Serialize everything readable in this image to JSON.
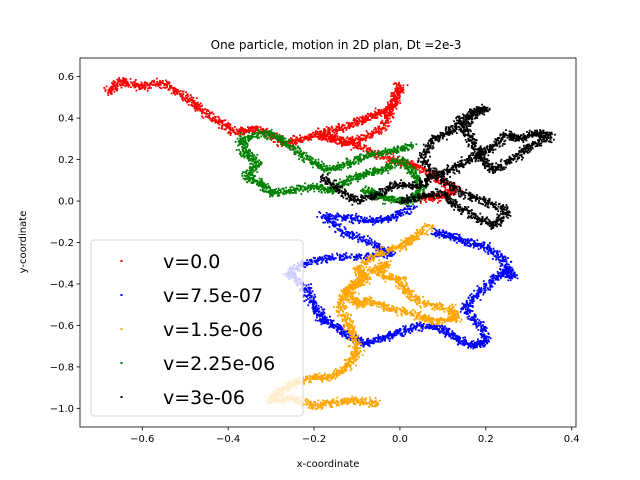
{
  "chart_data": {
    "type": "scatter",
    "title": "One particle, motion in 2D plan, Dt =2e-3",
    "xlabel": "x-coordinate",
    "ylabel": "y-coordinate",
    "xlim": [
      -0.745,
      0.41
    ],
    "ylim": [
      -1.09,
      0.69
    ],
    "xticks": [
      -0.6,
      -0.4,
      -0.2,
      0.0,
      0.2,
      0.4
    ],
    "xtick_labels": [
      "−0.6",
      "−0.4",
      "−0.2",
      "0.0",
      "0.2",
      "0.4"
    ],
    "yticks": [
      -1.0,
      -0.8,
      -0.6,
      -0.4,
      -0.2,
      0.0,
      0.2,
      0.4,
      0.6
    ],
    "ytick_labels": [
      "−1.0",
      "−0.8",
      "−0.6",
      "−0.4",
      "−0.2",
      "0.0",
      "0.2",
      "0.4",
      "0.6"
    ],
    "grid": false,
    "legend_position": "lower-left",
    "series": [
      {
        "name": "v=0.0",
        "color": "#ff0000",
        "path": [
          [
            -0.68,
            0.52
          ],
          [
            -0.65,
            0.58
          ],
          [
            -0.6,
            0.55
          ],
          [
            -0.55,
            0.57
          ],
          [
            -0.5,
            0.5
          ],
          [
            -0.47,
            0.45
          ],
          [
            -0.42,
            0.38
          ],
          [
            -0.38,
            0.33
          ],
          [
            -0.34,
            0.35
          ],
          [
            -0.3,
            0.32
          ],
          [
            -0.27,
            0.28
          ],
          [
            -0.22,
            0.3
          ],
          [
            -0.17,
            0.34
          ],
          [
            -0.12,
            0.36
          ],
          [
            -0.08,
            0.4
          ],
          [
            -0.04,
            0.43
          ],
          [
            -0.01,
            0.48
          ],
          [
            0.0,
            0.56
          ],
          [
            -0.02,
            0.45
          ],
          [
            -0.04,
            0.35
          ],
          [
            -0.09,
            0.3
          ],
          [
            -0.14,
            0.28
          ],
          [
            -0.19,
            0.32
          ],
          [
            -0.14,
            0.3
          ],
          [
            -0.08,
            0.25
          ],
          [
            -0.02,
            0.2
          ],
          [
            0.04,
            0.17
          ],
          [
            0.09,
            0.1
          ],
          [
            0.13,
            0.06
          ],
          [
            0.1,
            0.02
          ],
          [
            0.05,
            0.01
          ]
        ]
      },
      {
        "name": "v=7.5e-07",
        "color": "#0000ff",
        "path": [
          [
            0.03,
            -0.03
          ],
          [
            -0.02,
            -0.08
          ],
          [
            -0.07,
            -0.1
          ],
          [
            -0.12,
            -0.08
          ],
          [
            -0.18,
            -0.07
          ],
          [
            -0.13,
            -0.15
          ],
          [
            -0.07,
            -0.2
          ],
          [
            -0.02,
            -0.25
          ],
          [
            -0.08,
            -0.27
          ],
          [
            -0.16,
            -0.27
          ],
          [
            -0.22,
            -0.3
          ],
          [
            -0.26,
            -0.35
          ],
          [
            -0.22,
            -0.42
          ],
          [
            -0.2,
            -0.5
          ],
          [
            -0.18,
            -0.57
          ],
          [
            -0.15,
            -0.6
          ],
          [
            -0.12,
            -0.65
          ],
          [
            -0.08,
            -0.69
          ],
          [
            -0.04,
            -0.66
          ],
          [
            0.0,
            -0.63
          ],
          [
            0.05,
            -0.6
          ],
          [
            0.1,
            -0.62
          ],
          [
            0.13,
            -0.66
          ],
          [
            0.17,
            -0.7
          ],
          [
            0.2,
            -0.68
          ],
          [
            0.19,
            -0.6
          ],
          [
            0.15,
            -0.52
          ],
          [
            0.18,
            -0.45
          ],
          [
            0.22,
            -0.38
          ],
          [
            0.25,
            -0.33
          ],
          [
            0.26,
            -0.37
          ],
          [
            0.24,
            -0.28
          ],
          [
            0.2,
            -0.22
          ],
          [
            0.16,
            -0.2
          ],
          [
            0.12,
            -0.17
          ],
          [
            0.08,
            -0.15
          ]
        ]
      },
      {
        "name": "v=1.5e-06",
        "color": "#ffa500",
        "path": [
          [
            0.07,
            -0.12
          ],
          [
            0.03,
            -0.18
          ],
          [
            0.0,
            -0.22
          ],
          [
            -0.05,
            -0.25
          ],
          [
            -0.1,
            -0.33
          ],
          [
            -0.08,
            -0.38
          ],
          [
            -0.12,
            -0.43
          ],
          [
            -0.1,
            -0.5
          ],
          [
            -0.07,
            -0.48
          ],
          [
            -0.02,
            -0.52
          ],
          [
            0.04,
            -0.55
          ],
          [
            0.08,
            -0.58
          ],
          [
            0.13,
            -0.57
          ],
          [
            0.12,
            -0.52
          ],
          [
            0.06,
            -0.5
          ],
          [
            0.02,
            -0.45
          ],
          [
            0.0,
            -0.38
          ],
          [
            -0.05,
            -0.35
          ],
          [
            -0.03,
            -0.3
          ],
          [
            -0.08,
            -0.35
          ],
          [
            -0.12,
            -0.42
          ],
          [
            -0.14,
            -0.5
          ],
          [
            -0.12,
            -0.58
          ],
          [
            -0.11,
            -0.65
          ],
          [
            -0.1,
            -0.73
          ],
          [
            -0.12,
            -0.79
          ],
          [
            -0.16,
            -0.85
          ],
          [
            -0.2,
            -0.85
          ],
          [
            -0.25,
            -0.88
          ],
          [
            -0.28,
            -0.92
          ],
          [
            -0.3,
            -0.96
          ],
          [
            -0.25,
            -0.95
          ],
          [
            -0.2,
            -0.99
          ],
          [
            -0.15,
            -0.97
          ],
          [
            -0.1,
            -0.96
          ],
          [
            -0.05,
            -0.98
          ]
        ]
      },
      {
        "name": "v=2.25e-06",
        "color": "#008000",
        "path": [
          [
            0.03,
            0.27
          ],
          [
            -0.02,
            0.24
          ],
          [
            -0.08,
            0.22
          ],
          [
            -0.12,
            0.18
          ],
          [
            -0.17,
            0.15
          ],
          [
            -0.21,
            0.2
          ],
          [
            -0.25,
            0.26
          ],
          [
            -0.29,
            0.31
          ],
          [
            -0.32,
            0.33
          ],
          [
            -0.37,
            0.3
          ],
          [
            -0.36,
            0.23
          ],
          [
            -0.33,
            0.18
          ],
          [
            -0.36,
            0.12
          ],
          [
            -0.32,
            0.08
          ],
          [
            -0.3,
            0.04
          ],
          [
            -0.25,
            0.05
          ],
          [
            -0.2,
            0.07
          ],
          [
            -0.16,
            0.05
          ],
          [
            -0.12,
            0.1
          ],
          [
            -0.08,
            0.13
          ],
          [
            -0.04,
            0.15
          ],
          [
            0.0,
            0.2
          ],
          [
            0.03,
            0.15
          ],
          [
            0.05,
            0.06
          ],
          [
            0.02,
            0.0
          ],
          [
            -0.03,
            0.01
          ],
          [
            -0.08,
            0.05
          ],
          [
            -0.05,
            0.03
          ]
        ]
      },
      {
        "name": "v=3e-06",
        "color": "#000000",
        "path": [
          [
            -0.18,
            0.12
          ],
          [
            -0.14,
            0.05
          ],
          [
            -0.1,
            0.0
          ],
          [
            -0.05,
            0.03
          ],
          [
            -0.01,
            0.08
          ],
          [
            0.04,
            0.07
          ],
          [
            0.08,
            0.12
          ],
          [
            0.13,
            0.16
          ],
          [
            0.17,
            0.21
          ],
          [
            0.21,
            0.25
          ],
          [
            0.25,
            0.32
          ],
          [
            0.28,
            0.3
          ],
          [
            0.32,
            0.33
          ],
          [
            0.35,
            0.31
          ],
          [
            0.3,
            0.26
          ],
          [
            0.26,
            0.2
          ],
          [
            0.22,
            0.15
          ],
          [
            0.19,
            0.2
          ],
          [
            0.17,
            0.28
          ],
          [
            0.15,
            0.35
          ],
          [
            0.17,
            0.42
          ],
          [
            0.2,
            0.45
          ],
          [
            0.15,
            0.4
          ],
          [
            0.12,
            0.34
          ],
          [
            0.08,
            0.3
          ],
          [
            0.05,
            0.2
          ],
          [
            0.1,
            0.1
          ],
          [
            0.15,
            0.03
          ],
          [
            0.2,
            0.0
          ],
          [
            0.25,
            -0.05
          ],
          [
            0.22,
            -0.12
          ],
          [
            0.18,
            -0.08
          ],
          [
            0.13,
            -0.02
          ],
          [
            0.1,
            0.04
          ],
          [
            0.05,
            0.02
          ],
          [
            0.0,
            0.0
          ]
        ]
      }
    ]
  }
}
